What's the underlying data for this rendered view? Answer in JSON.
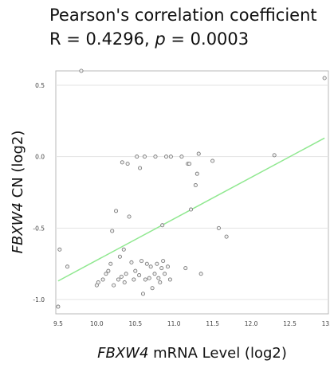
{
  "title": {
    "line1": "Pearson's correlation coefficient",
    "line2_prefix": "R = 0.4296, ",
    "line2_p": "p",
    "line2_suffix": " = 0.0003"
  },
  "chart_data": {
    "type": "scatter",
    "xlabel_gene": "FBXW4",
    "xlabel_rest": " mRNA Level (log2)",
    "ylabel_gene": "FBXW4",
    "ylabel_rest": " CN (log2)",
    "xlim": [
      9.47,
      13.0
    ],
    "ylim": [
      -1.1,
      0.6
    ],
    "x_ticks": [
      9.5,
      10.0,
      10.5,
      11.0,
      11.5,
      12.0,
      12.5,
      13.0
    ],
    "x_tick_labels": [
      "9.5",
      "10.0",
      "10.5",
      "11.0",
      "11.5",
      "12.0",
      "12.5",
      "13.0"
    ],
    "y_ticks": [
      0.5,
      0.0,
      -0.5,
      -1.0
    ],
    "y_tick_labels": [
      "0.5",
      "0.0",
      "-0.5",
      "-1.0"
    ],
    "grid": false,
    "trend_line": {
      "x": [
        9.5,
        12.95
      ],
      "y": [
        -0.87,
        0.13
      ],
      "color": "#90e890"
    },
    "point_color": "#6f6f6f",
    "points": [
      {
        "x": 9.5,
        "y": -1.05
      },
      {
        "x": 9.52,
        "y": -0.65
      },
      {
        "x": 9.62,
        "y": -0.77
      },
      {
        "x": 9.8,
        "y": 0.6
      },
      {
        "x": 12.95,
        "y": 0.55
      },
      {
        "x": 10.0,
        "y": -0.9
      },
      {
        "x": 10.02,
        "y": -0.88
      },
      {
        "x": 10.08,
        "y": -0.86
      },
      {
        "x": 10.12,
        "y": -0.82
      },
      {
        "x": 10.15,
        "y": -0.8
      },
      {
        "x": 10.18,
        "y": -0.75
      },
      {
        "x": 10.2,
        "y": -0.52
      },
      {
        "x": 10.22,
        "y": -0.9
      },
      {
        "x": 10.25,
        "y": -0.38
      },
      {
        "x": 10.28,
        "y": -0.86
      },
      {
        "x": 10.3,
        "y": -0.7
      },
      {
        "x": 10.32,
        "y": -0.84
      },
      {
        "x": 10.33,
        "y": -0.04
      },
      {
        "x": 10.35,
        "y": -0.65
      },
      {
        "x": 10.36,
        "y": -0.88
      },
      {
        "x": 10.38,
        "y": -0.82
      },
      {
        "x": 10.4,
        "y": -0.05
      },
      {
        "x": 10.42,
        "y": -0.42
      },
      {
        "x": 10.45,
        "y": -0.74
      },
      {
        "x": 10.48,
        "y": -0.86
      },
      {
        "x": 10.5,
        "y": -0.8
      },
      {
        "x": 10.52,
        "y": 0.0
      },
      {
        "x": 10.55,
        "y": -0.83
      },
      {
        "x": 10.56,
        "y": -0.08
      },
      {
        "x": 10.58,
        "y": -0.73
      },
      {
        "x": 10.6,
        "y": -0.96
      },
      {
        "x": 10.62,
        "y": 0.0
      },
      {
        "x": 10.63,
        "y": -0.86
      },
      {
        "x": 10.65,
        "y": -0.75
      },
      {
        "x": 10.68,
        "y": -0.85
      },
      {
        "x": 10.7,
        "y": -0.77
      },
      {
        "x": 10.72,
        "y": -0.92
      },
      {
        "x": 10.75,
        "y": -0.82
      },
      {
        "x": 10.76,
        "y": 0.0
      },
      {
        "x": 10.78,
        "y": -0.75
      },
      {
        "x": 10.8,
        "y": -0.85
      },
      {
        "x": 10.82,
        "y": -0.88
      },
      {
        "x": 10.84,
        "y": -0.78
      },
      {
        "x": 10.85,
        "y": -0.48
      },
      {
        "x": 10.86,
        "y": -0.73
      },
      {
        "x": 10.88,
        "y": -0.82
      },
      {
        "x": 10.9,
        "y": 0.0
      },
      {
        "x": 10.92,
        "y": -0.77
      },
      {
        "x": 10.95,
        "y": -0.86
      },
      {
        "x": 10.96,
        "y": 0.0
      },
      {
        "x": 11.1,
        "y": 0.0
      },
      {
        "x": 11.15,
        "y": -0.78
      },
      {
        "x": 11.18,
        "y": -0.05
      },
      {
        "x": 11.2,
        "y": -0.05
      },
      {
        "x": 11.22,
        "y": -0.37
      },
      {
        "x": 11.28,
        "y": -0.2
      },
      {
        "x": 11.3,
        "y": -0.12
      },
      {
        "x": 11.32,
        "y": 0.02
      },
      {
        "x": 11.35,
        "y": -0.82
      },
      {
        "x": 11.5,
        "y": -0.03
      },
      {
        "x": 11.58,
        "y": -0.5
      },
      {
        "x": 11.68,
        "y": -0.56
      },
      {
        "x": 12.3,
        "y": 0.01
      }
    ]
  }
}
